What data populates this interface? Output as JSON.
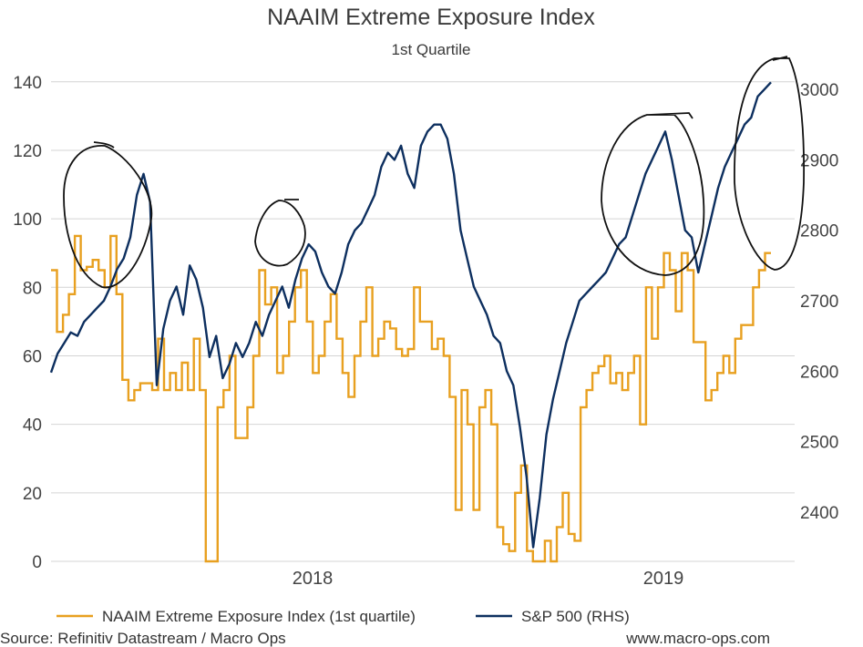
{
  "chart_data": {
    "type": "line",
    "title": "NAAIM Extreme Exposure Index",
    "subtitle": "1st Quartile",
    "x_tick_labels": [
      "2018",
      "2019"
    ],
    "left_axis": {
      "ylim": [
        0,
        145
      ],
      "ticks": [
        0,
        20,
        40,
        60,
        80,
        100,
        120,
        140
      ]
    },
    "right_axis": {
      "ylim": [
        2330,
        3035
      ],
      "ticks": [
        2400,
        2500,
        2600,
        2700,
        2800,
        2900,
        3000
      ]
    },
    "grid": true,
    "series": [
      {
        "name": "NAAIM Extreme Exposure Index (1st quartile)",
        "axis": "left",
        "color": "#e8a020",
        "values": [
          85,
          67,
          72,
          78,
          95,
          85,
          86,
          88,
          85,
          80,
          95,
          78,
          53,
          47,
          50,
          52,
          52,
          50,
          65,
          50,
          55,
          50,
          58,
          50,
          65,
          50,
          0,
          0,
          45,
          50,
          60,
          36,
          36,
          45,
          60,
          85,
          75,
          80,
          55,
          60,
          70,
          80,
          85,
          70,
          55,
          60,
          70,
          78,
          65,
          55,
          48,
          60,
          70,
          80,
          60,
          65,
          70,
          68,
          62,
          60,
          62,
          80,
          70,
          70,
          62,
          65,
          60,
          48,
          15,
          50,
          40,
          15,
          45,
          50,
          40,
          10,
          5,
          3,
          20,
          28,
          3,
          0,
          0,
          6,
          0,
          10,
          20,
          8,
          6,
          45,
          50,
          55,
          57,
          60,
          52,
          55,
          50,
          55,
          60,
          40,
          80,
          65,
          80,
          90,
          85,
          73,
          90,
          85,
          64,
          64,
          47,
          50,
          55,
          60,
          55,
          65,
          69,
          69,
          80,
          85,
          90
        ],
        "legend_label": "NAAIM Extreme Exposure Index (1st quartile)"
      },
      {
        "name": "S&P 500 (RHS)",
        "axis": "right",
        "color": "#0d2f5f",
        "values": [
          2598,
          2625,
          2640,
          2655,
          2650,
          2670,
          2680,
          2690,
          2700,
          2720,
          2745,
          2760,
          2790,
          2850,
          2880,
          2840,
          2580,
          2660,
          2700,
          2720,
          2680,
          2750,
          2730,
          2690,
          2620,
          2650,
          2590,
          2610,
          2640,
          2620,
          2640,
          2670,
          2650,
          2680,
          2700,
          2720,
          2690,
          2730,
          2760,
          2780,
          2770,
          2740,
          2720,
          2710,
          2740,
          2780,
          2800,
          2810,
          2830,
          2850,
          2890,
          2910,
          2900,
          2920,
          2880,
          2860,
          2920,
          2940,
          2950,
          2950,
          2930,
          2880,
          2800,
          2760,
          2720,
          2700,
          2680,
          2650,
          2640,
          2600,
          2580,
          2520,
          2450,
          2350,
          2420,
          2510,
          2560,
          2600,
          2640,
          2670,
          2700,
          2710,
          2720,
          2730,
          2740,
          2760,
          2780,
          2790,
          2820,
          2850,
          2880,
          2900,
          2920,
          2940,
          2900,
          2850,
          2800,
          2790,
          2740,
          2780,
          2820,
          2860,
          2890,
          2910,
          2930,
          2950,
          2960,
          2990,
          3000,
          3010
        ],
        "legend_label": "S&P 500 (RHS)"
      }
    ],
    "annotations": "hand-drawn circles around S&P 500 peaks"
  },
  "footer": {
    "source": "Source: Refinitiv Datastream / Macro Ops",
    "website": "www.macro-ops.com"
  }
}
